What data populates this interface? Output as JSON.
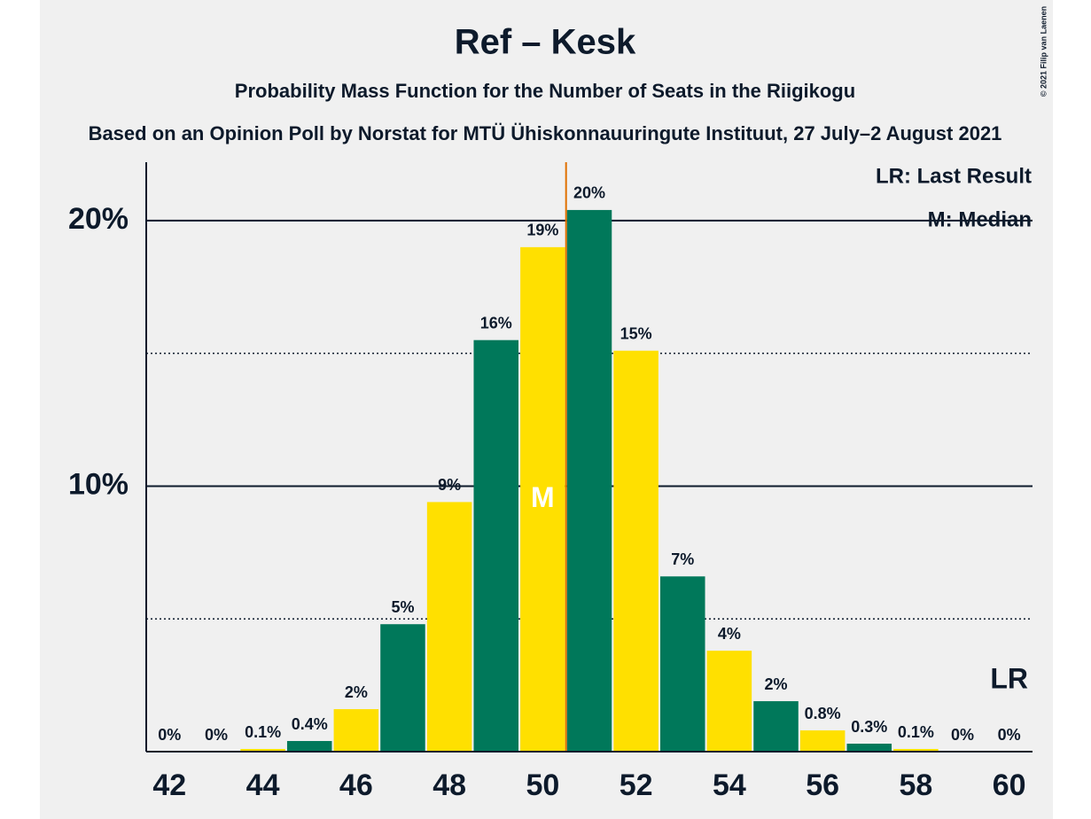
{
  "chart_data": {
    "type": "bar",
    "title": "Ref – Kesk",
    "subtitle": "Probability Mass Function for the Number of Seats in the Riigikogu",
    "caption": "Based on an Opinion Poll by Norstat for MTÜ Ühiskonnauuringute Instituut, 27 July–2 August 2021",
    "copyright": "© 2021 Filip van Laenen",
    "x": [
      42,
      43,
      44,
      45,
      46,
      47,
      48,
      49,
      50,
      51,
      52,
      53,
      54,
      55,
      56,
      57,
      58,
      59,
      60
    ],
    "values": [
      0,
      0,
      0.1,
      0.4,
      1.6,
      4.8,
      9.4,
      15.5,
      19.0,
      20.4,
      15.1,
      6.6,
      3.8,
      1.9,
      0.8,
      0.3,
      0.1,
      0,
      0
    ],
    "value_labels": [
      "0%",
      "0%",
      "0.1%",
      "0.4%",
      "2%",
      "5%",
      "9%",
      "16%",
      "19%",
      "20%",
      "15%",
      "7%",
      "4%",
      "2%",
      "0.8%",
      "0.3%",
      "0.1%",
      "0%",
      "0%"
    ],
    "colors": [
      "#ffe000",
      "#00785a"
    ],
    "xlim": [
      41.5,
      60.5
    ],
    "xticks": [
      42,
      44,
      46,
      48,
      50,
      52,
      54,
      56,
      58,
      60
    ],
    "ylim": [
      0,
      22.2
    ],
    "yticks": [
      {
        "value": 10,
        "label": "10%"
      },
      {
        "value": 20,
        "label": "20%"
      }
    ],
    "minor_yticks": [
      5,
      15
    ],
    "median_line": 50.5,
    "median_line_color": "#e07000",
    "median_marker": {
      "x": 50,
      "label": "M"
    },
    "last_result": {
      "x": 60,
      "label": "LR"
    },
    "legend": [
      "LR: Last Result",
      "M: Median"
    ]
  }
}
